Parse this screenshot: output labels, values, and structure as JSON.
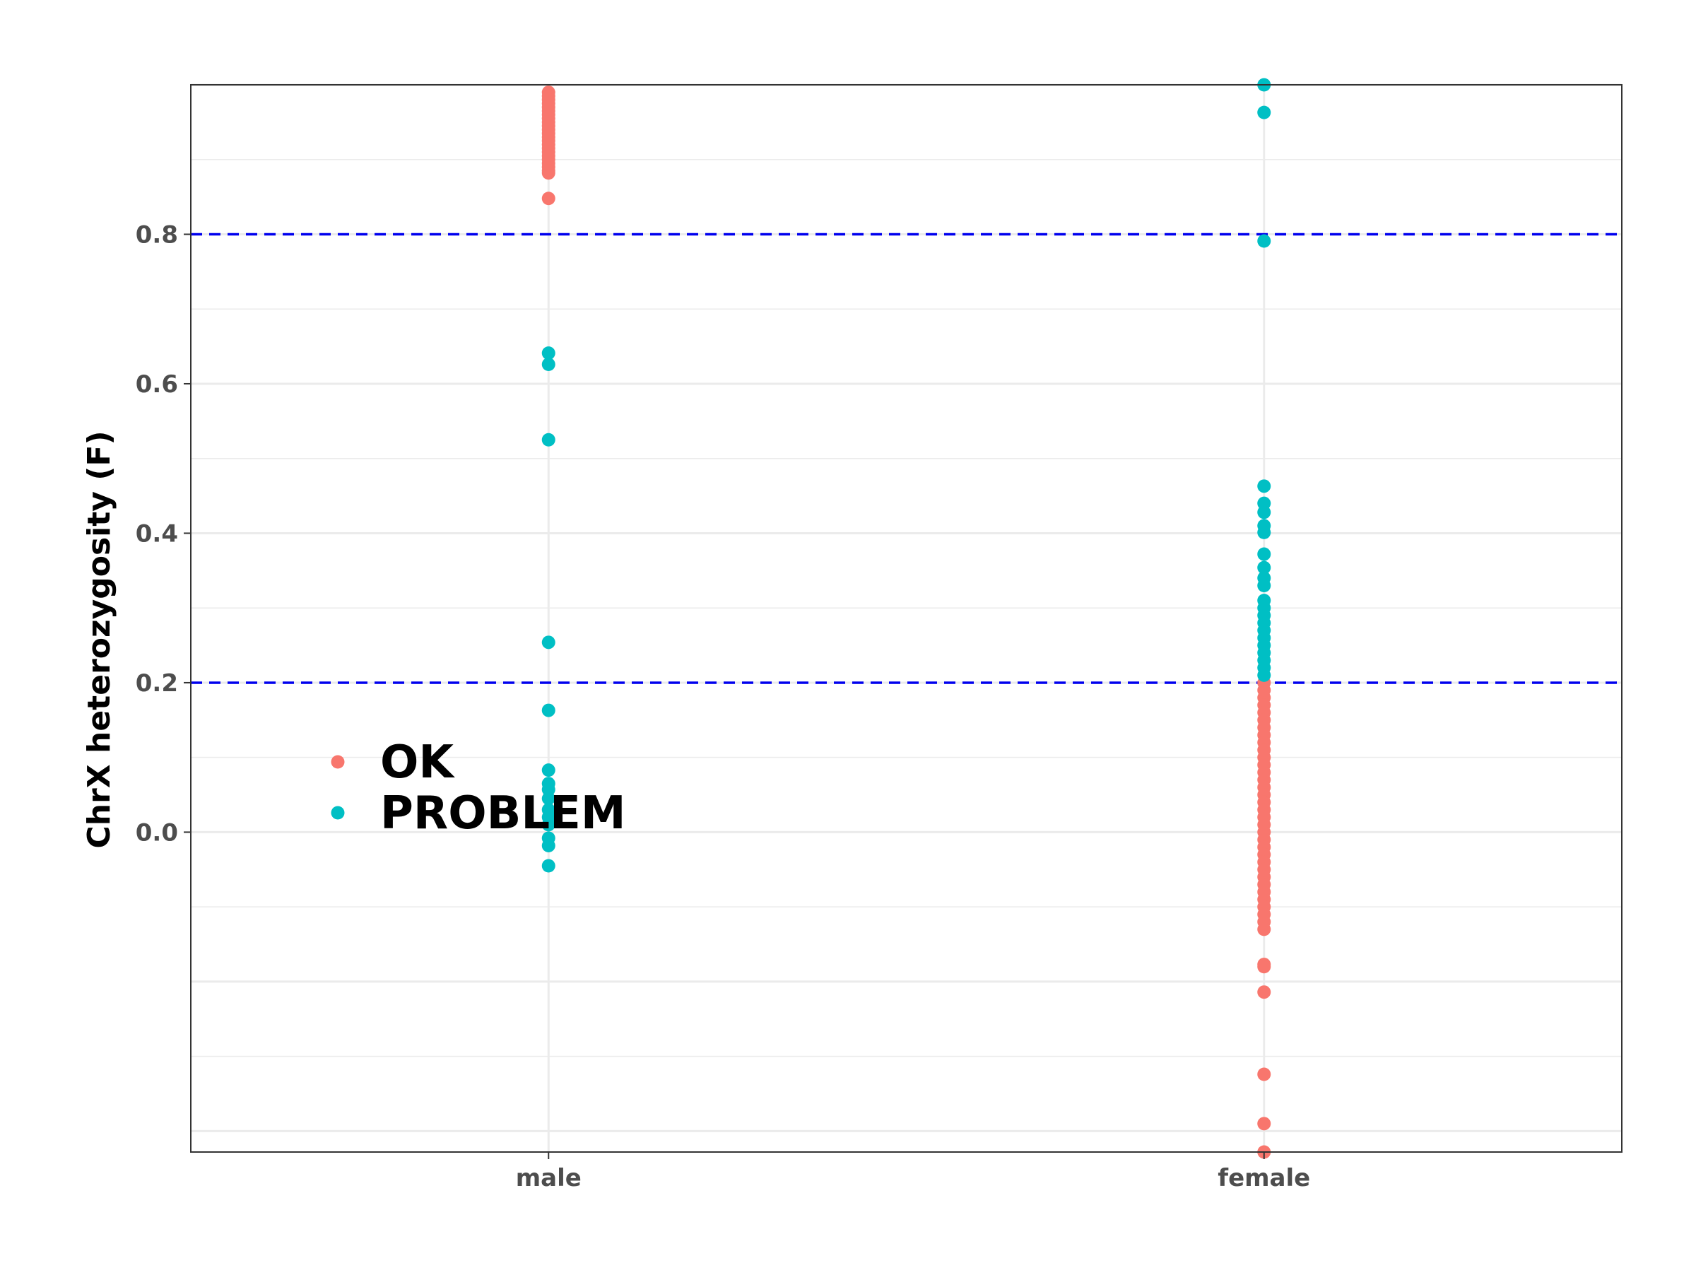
{
  "chart_data": {
    "type": "scatter",
    "title": "",
    "xlabel": "",
    "ylabel": "ChrX heterozygosity (F)",
    "x_type": "categorical",
    "categories": [
      "male",
      "female"
    ],
    "ylim": [
      -0.428,
      1.0
    ],
    "y_ticks": [
      0.0,
      0.2,
      0.4,
      0.6,
      0.8
    ],
    "y_tick_labels": [
      "0.0",
      "0.2",
      "0.4",
      "0.6",
      "0.8"
    ],
    "grid": true,
    "reference_lines": [
      {
        "axis": "y",
        "value": 0.2,
        "style": "dashed",
        "color": "#0000ee"
      },
      {
        "axis": "y",
        "value": 0.8,
        "style": "dashed",
        "color": "#0000ee"
      }
    ],
    "legend": {
      "position": "left-center",
      "show_title": false
    },
    "series": [
      {
        "name": "OK",
        "color": "#f8766d",
        "points": [
          {
            "x": "male",
            "y": 0.99
          },
          {
            "x": "male",
            "y": 0.985
          },
          {
            "x": "male",
            "y": 0.98
          },
          {
            "x": "male",
            "y": 0.975
          },
          {
            "x": "male",
            "y": 0.97
          },
          {
            "x": "male",
            "y": 0.965
          },
          {
            "x": "male",
            "y": 0.96
          },
          {
            "x": "male",
            "y": 0.955
          },
          {
            "x": "male",
            "y": 0.95
          },
          {
            "x": "male",
            "y": 0.945
          },
          {
            "x": "male",
            "y": 0.94
          },
          {
            "x": "male",
            "y": 0.935
          },
          {
            "x": "male",
            "y": 0.93
          },
          {
            "x": "male",
            "y": 0.925
          },
          {
            "x": "male",
            "y": 0.92
          },
          {
            "x": "male",
            "y": 0.915
          },
          {
            "x": "male",
            "y": 0.91
          },
          {
            "x": "male",
            "y": 0.905
          },
          {
            "x": "male",
            "y": 0.9
          },
          {
            "x": "male",
            "y": 0.895
          },
          {
            "x": "male",
            "y": 0.89
          },
          {
            "x": "male",
            "y": 0.885
          },
          {
            "x": "male",
            "y": 0.882
          },
          {
            "x": "male",
            "y": 0.848
          },
          {
            "x": "female",
            "y": 0.2
          },
          {
            "x": "female",
            "y": 0.19
          },
          {
            "x": "female",
            "y": 0.18
          },
          {
            "x": "female",
            "y": 0.17
          },
          {
            "x": "female",
            "y": 0.16
          },
          {
            "x": "female",
            "y": 0.15
          },
          {
            "x": "female",
            "y": 0.14
          },
          {
            "x": "female",
            "y": 0.13
          },
          {
            "x": "female",
            "y": 0.12
          },
          {
            "x": "female",
            "y": 0.11
          },
          {
            "x": "female",
            "y": 0.1
          },
          {
            "x": "female",
            "y": 0.09
          },
          {
            "x": "female",
            "y": 0.08
          },
          {
            "x": "female",
            "y": 0.07
          },
          {
            "x": "female",
            "y": 0.06
          },
          {
            "x": "female",
            "y": 0.05
          },
          {
            "x": "female",
            "y": 0.04
          },
          {
            "x": "female",
            "y": 0.03
          },
          {
            "x": "female",
            "y": 0.02
          },
          {
            "x": "female",
            "y": 0.01
          },
          {
            "x": "female",
            "y": 0.0
          },
          {
            "x": "female",
            "y": -0.01
          },
          {
            "x": "female",
            "y": -0.02
          },
          {
            "x": "female",
            "y": -0.03
          },
          {
            "x": "female",
            "y": -0.04
          },
          {
            "x": "female",
            "y": -0.05
          },
          {
            "x": "female",
            "y": -0.06
          },
          {
            "x": "female",
            "y": -0.07
          },
          {
            "x": "female",
            "y": -0.08
          },
          {
            "x": "female",
            "y": -0.09
          },
          {
            "x": "female",
            "y": -0.1
          },
          {
            "x": "female",
            "y": -0.11
          },
          {
            "x": "female",
            "y": -0.12
          },
          {
            "x": "female",
            "y": -0.13
          },
          {
            "x": "female",
            "y": -0.177
          },
          {
            "x": "female",
            "y": -0.18
          },
          {
            "x": "female",
            "y": -0.214
          },
          {
            "x": "female",
            "y": -0.324
          },
          {
            "x": "female",
            "y": -0.39
          },
          {
            "x": "female",
            "y": -0.428
          }
        ]
      },
      {
        "name": "PROBLEM",
        "color": "#00bfc4",
        "points": [
          {
            "x": "male",
            "y": 0.641
          },
          {
            "x": "male",
            "y": 0.626
          },
          {
            "x": "male",
            "y": 0.525
          },
          {
            "x": "male",
            "y": 0.254
          },
          {
            "x": "male",
            "y": 0.163
          },
          {
            "x": "male",
            "y": 0.083
          },
          {
            "x": "male",
            "y": 0.065
          },
          {
            "x": "male",
            "y": 0.057
          },
          {
            "x": "male",
            "y": 0.045
          },
          {
            "x": "male",
            "y": 0.03
          },
          {
            "x": "male",
            "y": 0.02
          },
          {
            "x": "male",
            "y": 0.01
          },
          {
            "x": "male",
            "y": -0.008
          },
          {
            "x": "male",
            "y": -0.018
          },
          {
            "x": "male",
            "y": -0.045
          },
          {
            "x": "female",
            "y": 1.0
          },
          {
            "x": "female",
            "y": 0.963
          },
          {
            "x": "female",
            "y": 0.791
          },
          {
            "x": "female",
            "y": 0.463
          },
          {
            "x": "female",
            "y": 0.44
          },
          {
            "x": "female",
            "y": 0.428
          },
          {
            "x": "female",
            "y": 0.41
          },
          {
            "x": "female",
            "y": 0.401
          },
          {
            "x": "female",
            "y": 0.372
          },
          {
            "x": "female",
            "y": 0.354
          },
          {
            "x": "female",
            "y": 0.34
          },
          {
            "x": "female",
            "y": 0.33
          },
          {
            "x": "female",
            "y": 0.31
          },
          {
            "x": "female",
            "y": 0.3
          },
          {
            "x": "female",
            "y": 0.29
          },
          {
            "x": "female",
            "y": 0.28
          },
          {
            "x": "female",
            "y": 0.27
          },
          {
            "x": "female",
            "y": 0.26
          },
          {
            "x": "female",
            "y": 0.25
          },
          {
            "x": "female",
            "y": 0.24
          },
          {
            "x": "female",
            "y": 0.23
          },
          {
            "x": "female",
            "y": 0.22
          },
          {
            "x": "female",
            "y": 0.21
          }
        ]
      }
    ]
  }
}
